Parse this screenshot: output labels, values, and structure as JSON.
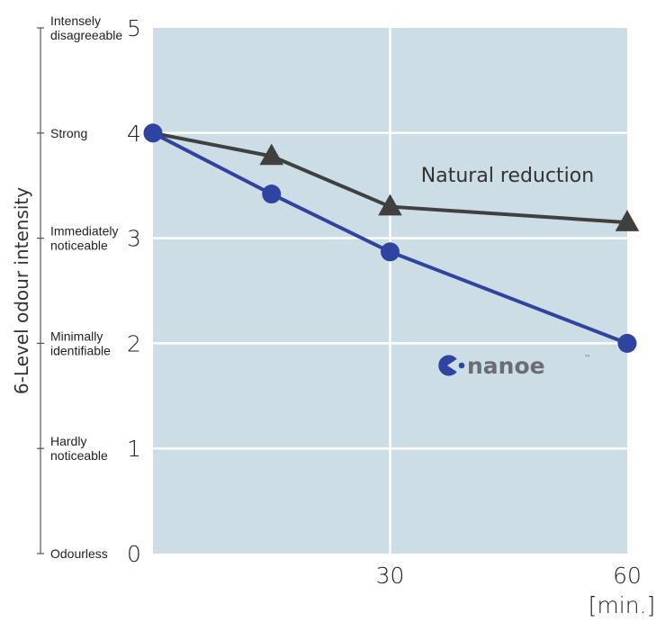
{
  "chart_data": {
    "type": "line",
    "x": [
      0,
      15,
      30,
      60
    ],
    "xticks": [
      30,
      60
    ],
    "xunit": "[min.]",
    "ylim": [
      0,
      5
    ],
    "xlim": [
      0,
      60
    ],
    "yticks": [
      0,
      1,
      2,
      3,
      4,
      5
    ],
    "ylabel": "6-Level odour intensity",
    "level_labels": [
      {
        "value": 5,
        "lines": [
          "Intensely",
          "disagreeable"
        ]
      },
      {
        "value": 4,
        "lines": [
          "Strong"
        ]
      },
      {
        "value": 3,
        "lines": [
          "Immediately",
          "noticeable"
        ]
      },
      {
        "value": 2,
        "lines": [
          "Minimally",
          "identifiable"
        ]
      },
      {
        "value": 1,
        "lines": [
          "Hardly",
          "noticeable"
        ]
      },
      {
        "value": 0,
        "lines": [
          "Odourless"
        ]
      }
    ],
    "series": [
      {
        "name": "Natural reduction",
        "marker": "triangle",
        "color": "#404040",
        "values": [
          4.0,
          3.78,
          3.3,
          3.15
        ]
      },
      {
        "name": "nanoe",
        "marker": "circle",
        "color": "#2e44a0",
        "values": [
          4.0,
          3.42,
          2.87,
          2.0
        ]
      }
    ],
    "annotations": {
      "natural": "Natural reduction",
      "brand": "nanoe",
      "brand_mark": "™"
    },
    "colors": {
      "plot_bg": "#cddde5",
      "grid": "#ffffff",
      "natural": "#404040",
      "nanoe": "#2e44a0"
    },
    "grid": true
  }
}
